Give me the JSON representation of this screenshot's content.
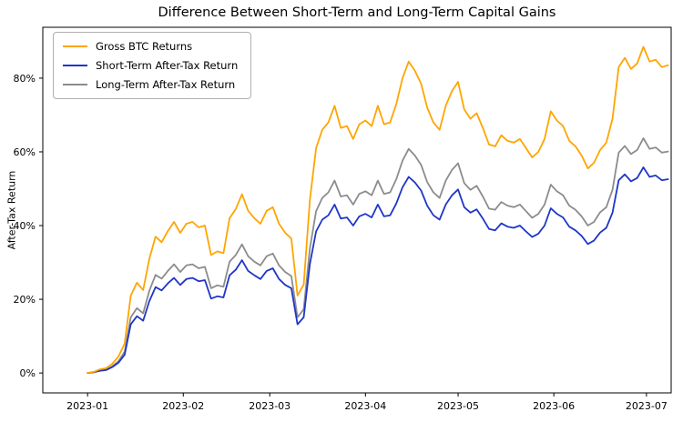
{
  "chart_data": {
    "type": "line",
    "title": "Difference Between Short-Term and Long-Term Capital Gains",
    "ylabel": "After-Tax Return",
    "xlabel": "",
    "grid": false,
    "legend_position": "upper left",
    "x_start_date": "2023-01-01",
    "x_start_day": 0,
    "x_step_days": 2,
    "xlim_days": [
      -14.5,
      189
    ],
    "ylim": [
      -5.4,
      93.8
    ],
    "x_ticks": [
      {
        "day": 0,
        "label": "2023-01"
      },
      {
        "day": 31,
        "label": "2023-02"
      },
      {
        "day": 59,
        "label": "2023-03"
      },
      {
        "day": 90,
        "label": "2023-04"
      },
      {
        "day": 120,
        "label": "2023-05"
      },
      {
        "day": 151,
        "label": "2023-06"
      },
      {
        "day": 181,
        "label": "2023-07"
      }
    ],
    "y_ticks": [
      {
        "value": 0,
        "label": "0%"
      },
      {
        "value": 20,
        "label": "20%"
      },
      {
        "value": 40,
        "label": "40%"
      },
      {
        "value": 60,
        "label": "60%"
      },
      {
        "value": 80,
        "label": "80%"
      }
    ],
    "series": [
      {
        "id": "gross-btc-returns",
        "name": "Gross BTC Returns",
        "color": "#FFA500",
        "values": [
          0.0,
          0.3,
          1.0,
          1.3,
          2.5,
          4.5,
          8.0,
          21.0,
          24.5,
          22.5,
          31.0,
          37.0,
          35.5,
          38.5,
          41.0,
          38.0,
          40.5,
          41.0,
          39.5,
          40.0,
          32.0,
          33.0,
          32.5,
          42.0,
          44.5,
          48.5,
          44.0,
          42.0,
          40.5,
          44.0,
          45.0,
          40.5,
          38.0,
          36.5,
          21.0,
          24.0,
          47.0,
          61.0,
          66.0,
          68.0,
          72.5,
          66.5,
          67.0,
          63.5,
          67.5,
          68.5,
          67.0,
          72.5,
          67.5,
          68.0,
          73.0,
          80.0,
          84.5,
          82.0,
          78.5,
          72.0,
          68.0,
          66.0,
          72.5,
          76.5,
          79.0,
          71.5,
          69.0,
          70.5,
          66.5,
          62.0,
          61.5,
          64.5,
          63.0,
          62.5,
          63.5,
          61.0,
          58.5,
          60.0,
          63.5,
          71.0,
          68.5,
          67.0,
          63.0,
          61.5,
          59.0,
          55.5,
          57.0,
          60.5,
          62.5,
          69.0,
          83.0,
          85.5,
          82.5,
          84.0,
          88.5,
          84.5,
          85.0,
          83.0,
          83.5
        ]
      },
      {
        "id": "short-term-after-tax",
        "name": "Short-Term After-Tax Return",
        "color": "#1F36C7",
        "values": [
          0.0,
          0.2,
          0.6,
          0.8,
          1.6,
          2.8,
          5.0,
          13.2,
          15.4,
          14.2,
          19.5,
          23.3,
          22.4,
          24.3,
          25.8,
          23.9,
          25.5,
          25.8,
          24.9,
          25.2,
          20.2,
          20.8,
          20.5,
          26.5,
          28.0,
          30.6,
          27.7,
          26.5,
          25.5,
          27.7,
          28.4,
          25.5,
          23.9,
          23.0,
          13.2,
          15.1,
          29.6,
          38.4,
          41.6,
          42.8,
          45.7,
          41.9,
          42.2,
          40.0,
          42.5,
          43.2,
          42.2,
          45.7,
          42.5,
          42.8,
          46.0,
          50.4,
          53.2,
          51.7,
          49.5,
          45.4,
          42.8,
          41.6,
          45.7,
          48.2,
          49.8,
          45.0,
          43.5,
          44.4,
          41.9,
          39.1,
          38.7,
          40.6,
          39.7,
          39.4,
          40.0,
          38.4,
          36.9,
          37.8,
          40.0,
          44.7,
          43.2,
          42.2,
          39.7,
          38.7,
          37.2,
          35.0,
          35.9,
          38.1,
          39.4,
          43.5,
          52.3,
          53.9,
          52.0,
          52.9,
          55.8,
          53.2,
          53.6,
          52.3,
          52.6
        ]
      },
      {
        "id": "long-term-after-tax",
        "name": "Long-Term After-Tax Return",
        "color": "#8C8C8C",
        "values": [
          0.0,
          0.2,
          0.7,
          0.9,
          1.8,
          3.2,
          5.8,
          15.1,
          17.6,
          16.2,
          22.3,
          26.6,
          25.6,
          27.7,
          29.5,
          27.4,
          29.2,
          29.5,
          28.4,
          28.8,
          23.0,
          23.8,
          23.4,
          30.2,
          32.0,
          34.9,
          31.7,
          30.2,
          29.2,
          31.7,
          32.4,
          29.2,
          27.4,
          26.3,
          15.1,
          17.3,
          33.8,
          43.9,
          47.5,
          49.0,
          52.2,
          47.9,
          48.2,
          45.7,
          48.6,
          49.3,
          48.2,
          52.2,
          48.6,
          49.0,
          52.6,
          57.6,
          60.8,
          59.0,
          56.5,
          51.8,
          49.0,
          47.5,
          52.2,
          55.1,
          56.9,
          51.5,
          49.7,
          50.8,
          47.9,
          44.6,
          44.3,
          46.4,
          45.4,
          45.0,
          45.7,
          43.9,
          42.1,
          43.2,
          45.7,
          51.1,
          49.3,
          48.2,
          45.4,
          44.3,
          42.5,
          40.0,
          41.0,
          43.6,
          45.0,
          49.7,
          59.8,
          61.6,
          59.4,
          60.5,
          63.7,
          60.8,
          61.2,
          59.8,
          60.1
        ]
      }
    ]
  }
}
